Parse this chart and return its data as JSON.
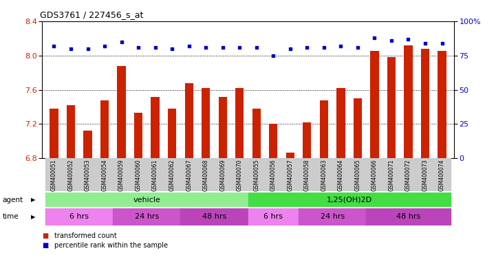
{
  "title": "GDS3761 / 227456_s_at",
  "samples": [
    "GSM400051",
    "GSM400052",
    "GSM400053",
    "GSM400054",
    "GSM400059",
    "GSM400060",
    "GSM400061",
    "GSM400062",
    "GSM400067",
    "GSM400068",
    "GSM400069",
    "GSM400070",
    "GSM400055",
    "GSM400056",
    "GSM400057",
    "GSM400058",
    "GSM400063",
    "GSM400064",
    "GSM400065",
    "GSM400066",
    "GSM400071",
    "GSM400072",
    "GSM400073",
    "GSM400074"
  ],
  "red_values": [
    7.38,
    7.42,
    7.12,
    7.48,
    7.88,
    7.33,
    7.52,
    7.38,
    7.68,
    7.62,
    7.52,
    7.62,
    7.38,
    7.2,
    6.87,
    7.22,
    7.48,
    7.62,
    7.5,
    8.05,
    7.98,
    8.12,
    8.08,
    8.05
  ],
  "blue_values": [
    82,
    80,
    80,
    82,
    85,
    81,
    81,
    80,
    82,
    81,
    81,
    81,
    81,
    75,
    80,
    81,
    81,
    82,
    81,
    88,
    86,
    87,
    84,
    84
  ],
  "ylim_left": [
    6.8,
    8.4
  ],
  "ylim_right": [
    0,
    100
  ],
  "yticks_left": [
    6.8,
    7.2,
    7.6,
    8.0,
    8.4
  ],
  "yticks_right": [
    0,
    25,
    50,
    75,
    100
  ],
  "ytick_labels_right": [
    "0",
    "25",
    "50",
    "75",
    "100%"
  ],
  "bar_color": "#CC2200",
  "dot_color": "#0000CC",
  "bar_width": 0.5,
  "agent_vehicle_color": "#90EE90",
  "agent_d2_color": "#44DD44",
  "time_6_color": "#EE82EE",
  "time_24_color": "#CC55CC",
  "time_48_color": "#BB44BB",
  "bg_xtick_color": "#CCCCCC",
  "time_groups": [
    {
      "label": "6 hrs",
      "start": 0,
      "end": 4,
      "color": "#EE82EE"
    },
    {
      "label": "24 hrs",
      "start": 4,
      "end": 8,
      "color": "#CC55CC"
    },
    {
      "label": "48 hrs",
      "start": 8,
      "end": 12,
      "color": "#BB44BB"
    },
    {
      "label": "6 hrs",
      "start": 12,
      "end": 15,
      "color": "#EE82EE"
    },
    {
      "label": "24 hrs",
      "start": 15,
      "end": 19,
      "color": "#CC55CC"
    },
    {
      "label": "48 hrs",
      "start": 19,
      "end": 24,
      "color": "#BB44BB"
    }
  ]
}
